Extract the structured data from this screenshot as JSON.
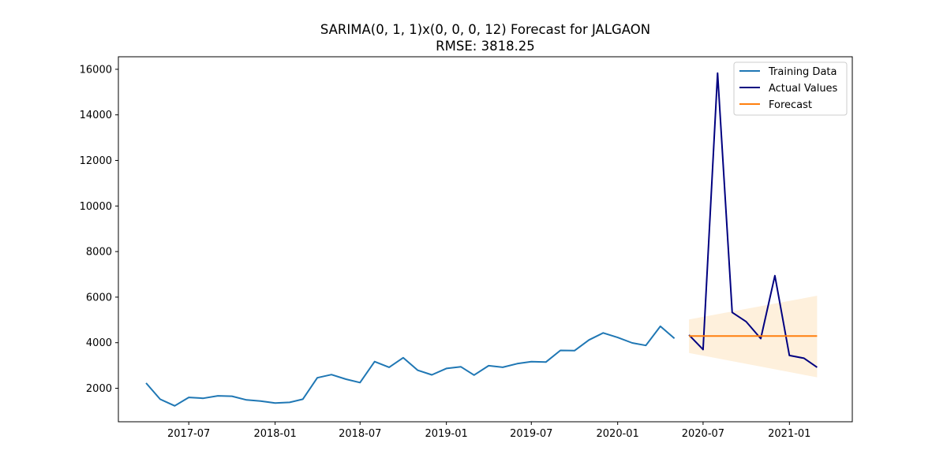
{
  "chart_data": {
    "type": "line",
    "title": "SARIMA(0, 1, 1)x(0, 0, 0, 12) Forecast for JALGAON",
    "subtitle": "RMSE: 3818.25",
    "xlabel": "",
    "ylabel": "",
    "x_tick_labels": [
      "2017-07",
      "2018-01",
      "2018-07",
      "2019-01",
      "2019-07",
      "2020-01",
      "2020-07",
      "2021-01"
    ],
    "y_tick_labels": [
      "2000",
      "4000",
      "6000",
      "8000",
      "10000",
      "12000",
      "14000",
      "16000"
    ],
    "ylim": [
      530,
      16550
    ],
    "xlim": [
      "2017-02-01",
      "2021-05-15"
    ],
    "grid": false,
    "legend_position": "top-right",
    "series": [
      {
        "name": "Training Data",
        "color": "#1f77b4",
        "x": [
          "2017-04-01",
          "2017-05-01",
          "2017-06-01",
          "2017-07-01",
          "2017-08-01",
          "2017-09-01",
          "2017-10-01",
          "2017-11-01",
          "2017-12-01",
          "2018-01-01",
          "2018-02-01",
          "2018-03-01",
          "2018-04-01",
          "2018-05-01",
          "2018-06-01",
          "2018-07-01",
          "2018-08-01",
          "2018-09-01",
          "2018-10-01",
          "2018-11-01",
          "2018-12-01",
          "2019-01-01",
          "2019-02-01",
          "2019-03-01",
          "2019-04-01",
          "2019-05-01",
          "2019-06-01",
          "2019-07-01",
          "2019-08-01",
          "2019-09-01",
          "2019-10-01",
          "2019-11-01",
          "2019-12-01",
          "2020-01-01",
          "2020-02-01",
          "2020-03-01",
          "2020-04-01",
          "2020-05-01"
        ],
        "values": [
          2230,
          1520,
          1230,
          1600,
          1560,
          1670,
          1650,
          1490,
          1440,
          1350,
          1380,
          1520,
          2460,
          2600,
          2400,
          2250,
          3170,
          2920,
          3340,
          2790,
          2590,
          2870,
          2940,
          2580,
          2990,
          2920,
          3080,
          3170,
          3150,
          3660,
          3650,
          4120,
          4430,
          4230,
          3990,
          3880,
          4720,
          4190
        ]
      },
      {
        "name": "Actual Values",
        "color": "#000080",
        "x": [
          "2020-06-01",
          "2020-07-01",
          "2020-08-01",
          "2020-09-01",
          "2020-10-01",
          "2020-11-01",
          "2020-12-01",
          "2021-01-01",
          "2021-02-01",
          "2021-03-01"
        ],
        "values": [
          4340,
          3700,
          15830,
          5330,
          4920,
          4180,
          6940,
          3440,
          3320,
          2920
        ]
      },
      {
        "name": "Forecast",
        "color": "#ff7f0e",
        "x": [
          "2020-06-01",
          "2021-03-01"
        ],
        "values": [
          4290,
          4290
        ]
      }
    ],
    "confidence_band": {
      "color": "#fdebd0",
      "x": [
        "2020-06-01",
        "2021-03-01"
      ],
      "upper": [
        5020,
        6060
      ],
      "lower": [
        3550,
        2480
      ]
    }
  }
}
